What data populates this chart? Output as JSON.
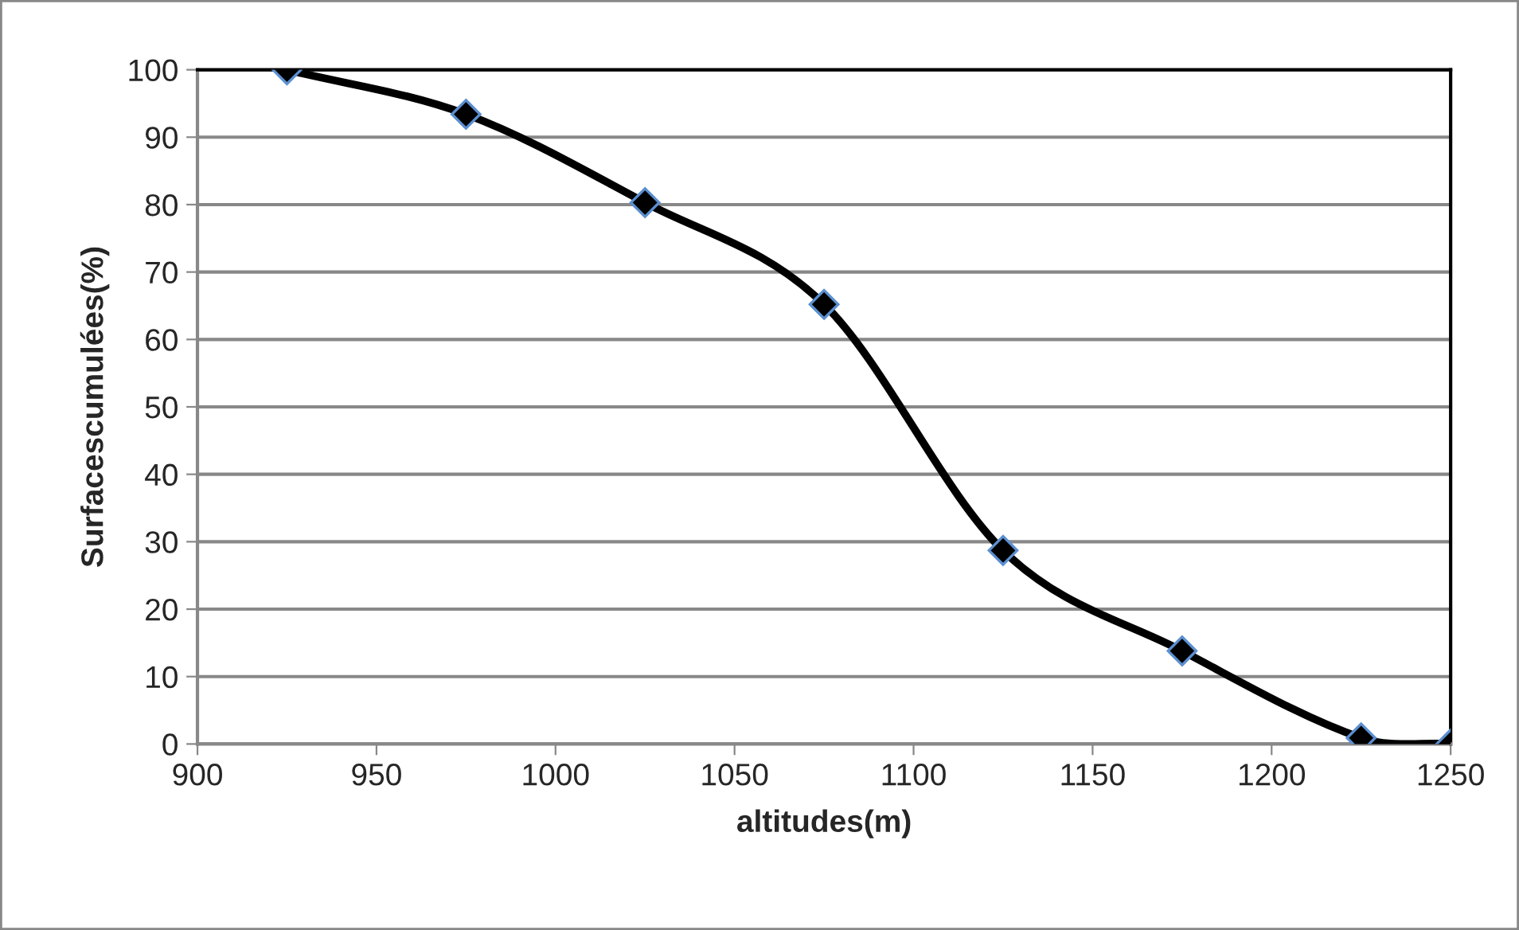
{
  "chart_data": {
    "type": "line",
    "xlabel": "altitudes(m)",
    "ylabel": "Surfacescumulées(%)",
    "x": [
      925,
      975,
      1025,
      1075,
      1125,
      1175,
      1225,
      1250
    ],
    "series": [
      {
        "color": "#000000",
        "values": [
          100,
          93.4,
          80.3,
          65.2,
          28.7,
          13.8,
          0.9,
          0
        ]
      }
    ],
    "xlim": [
      900,
      1250
    ],
    "xticks": [
      900,
      950,
      1000,
      1050,
      1100,
      1150,
      1200,
      1250
    ],
    "ylim": [
      0,
      100
    ],
    "yticks": [
      0,
      10,
      20,
      30,
      40,
      50,
      60,
      70,
      80,
      90,
      100
    ],
    "grid": "y",
    "marker": "diamond",
    "line_style": "solid",
    "legend": false
  }
}
